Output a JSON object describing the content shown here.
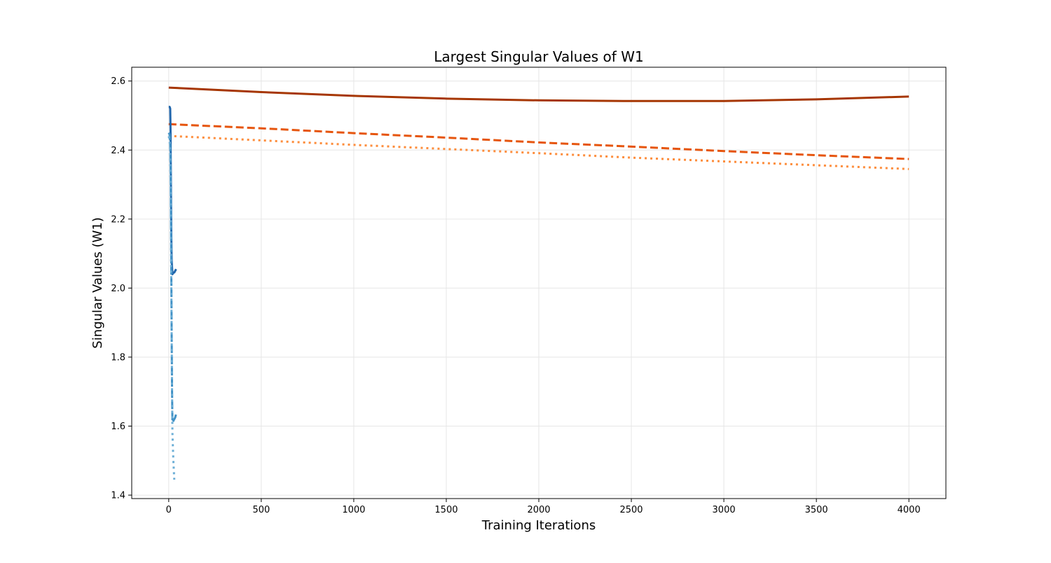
{
  "chart_data": {
    "type": "line",
    "title": "Largest Singular Values of W1",
    "xlabel": "Training Iterations",
    "ylabel": "Singular Values (W1)",
    "xlim": [
      -200,
      4200
    ],
    "ylim": [
      1.39,
      2.64
    ],
    "xticks": [
      0,
      500,
      1000,
      1500,
      2000,
      2500,
      3000,
      3500,
      4000
    ],
    "xtick_labels": [
      "0",
      "500",
      "1000",
      "1500",
      "2000",
      "2500",
      "3000",
      "3500",
      "4000"
    ],
    "yticks": [
      1.4,
      1.6,
      1.8,
      2.0,
      2.2,
      2.4,
      2.6
    ],
    "ytick_labels": [
      "1.4",
      "1.6",
      "1.8",
      "2.0",
      "2.2",
      "2.4",
      "2.6"
    ],
    "grid": true,
    "legend": "none",
    "series": [
      {
        "color": "#a63603",
        "style": "solid",
        "x": [
          0,
          500,
          1000,
          1500,
          2000,
          2500,
          3000,
          3500,
          4000
        ],
        "y": [
          2.581,
          2.568,
          2.557,
          2.549,
          2.544,
          2.542,
          2.542,
          2.547,
          2.555
        ]
      },
      {
        "color": "#e6550d",
        "style": "dashed",
        "x": [
          0,
          500,
          1000,
          1500,
          2000,
          2500,
          3000,
          3500,
          4000
        ],
        "y": [
          2.475,
          2.463,
          2.449,
          2.436,
          2.422,
          2.41,
          2.397,
          2.385,
          2.374
        ]
      },
      {
        "color": "#fd8d3c",
        "style": "dotted",
        "x": [
          0,
          500,
          1000,
          1500,
          2000,
          2500,
          3000,
          3500,
          4000
        ],
        "y": [
          2.441,
          2.428,
          2.415,
          2.403,
          2.391,
          2.378,
          2.367,
          2.356,
          2.345
        ]
      },
      {
        "color": "#2166ac",
        "style": "solid",
        "x": [
          0,
          5,
          8,
          10,
          12,
          14,
          16,
          20,
          25,
          30,
          35,
          40
        ],
        "y": [
          2.525,
          2.525,
          2.52,
          2.45,
          2.3,
          2.15,
          2.08,
          2.04,
          2.045,
          2.045,
          2.05,
          2.055
        ]
      },
      {
        "color": "#4292c6",
        "style": "dashed",
        "x": [
          0,
          5,
          8,
          10,
          12,
          14,
          16,
          18,
          20,
          25,
          30,
          35,
          40
        ],
        "y": [
          2.45,
          2.445,
          2.42,
          2.35,
          2.2,
          2.05,
          1.85,
          1.7,
          1.61,
          1.615,
          1.62,
          1.625,
          1.635
        ]
      },
      {
        "color": "#6baed6",
        "style": "dotted",
        "x": [
          0,
          5,
          8,
          10,
          12,
          14,
          16,
          18,
          20,
          25,
          30
        ],
        "y": [
          2.44,
          2.43,
          2.4,
          2.3,
          2.15,
          2.0,
          1.85,
          1.7,
          1.58,
          1.5,
          1.445
        ]
      }
    ]
  }
}
